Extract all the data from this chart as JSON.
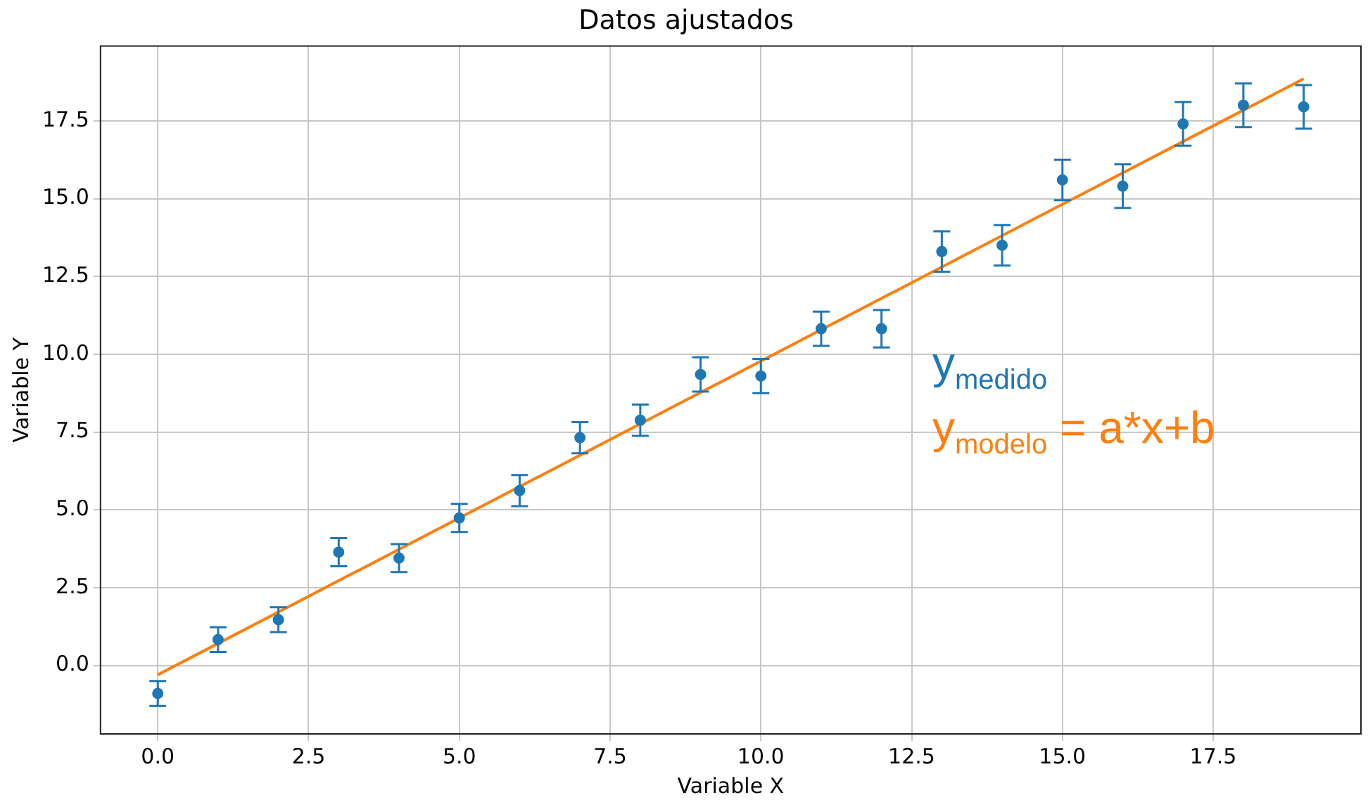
{
  "chart_data": {
    "type": "scatter",
    "title": "Datos ajustados",
    "xlabel": "Variable X",
    "ylabel": "Variable Y",
    "x": [
      0,
      1,
      2,
      3,
      4,
      5,
      6,
      7,
      8,
      9,
      10,
      11,
      12,
      13,
      14,
      15,
      16,
      17,
      18,
      19
    ],
    "series": [
      {
        "name": "y$_{medido}$",
        "type": "scatter",
        "marker": "circle",
        "color": "#1f77b4",
        "values": [
          -0.9,
          0.83,
          1.47,
          3.64,
          3.45,
          4.74,
          5.62,
          7.32,
          7.88,
          9.35,
          9.3,
          10.82,
          10.82,
          13.3,
          13.5,
          15.6,
          15.4,
          17.4,
          18.0,
          17.95
        ],
        "errors": [
          0.4,
          0.4,
          0.4,
          0.45,
          0.45,
          0.45,
          0.5,
          0.5,
          0.5,
          0.55,
          0.55,
          0.55,
          0.6,
          0.65,
          0.65,
          0.65,
          0.7,
          0.7,
          0.7,
          0.7
        ]
      },
      {
        "name": "y$_{modelo}$ = a*x+b",
        "type": "line",
        "color": "#ff7f0e",
        "x": [
          0,
          19
        ],
        "values": [
          -0.3,
          18.85
        ]
      }
    ],
    "xlim": [
      -0.95,
      19.95
    ],
    "ylim": [
      -2.2,
      19.9
    ],
    "xticks": [
      {
        "value": 0,
        "label": "0.0"
      },
      {
        "value": 2.5,
        "label": "2.5"
      },
      {
        "value": 5,
        "label": "5.0"
      },
      {
        "value": 7.5,
        "label": "7.5"
      },
      {
        "value": 10,
        "label": "10.0"
      },
      {
        "value": 12.5,
        "label": "12.5"
      },
      {
        "value": 15,
        "label": "15.0"
      },
      {
        "value": 17.5,
        "label": "17.5"
      }
    ],
    "yticks": [
      {
        "value": 0,
        "label": "0.0"
      },
      {
        "value": 2.5,
        "label": "2.5"
      },
      {
        "value": 5,
        "label": "5.0"
      },
      {
        "value": 7.5,
        "label": "7.5"
      },
      {
        "value": 10,
        "label": "10.0"
      },
      {
        "value": 12.5,
        "label": "12.5"
      },
      {
        "value": 15,
        "label": "15.0"
      },
      {
        "value": 17.5,
        "label": "17.5"
      }
    ],
    "grid": true,
    "legend": "right"
  }
}
